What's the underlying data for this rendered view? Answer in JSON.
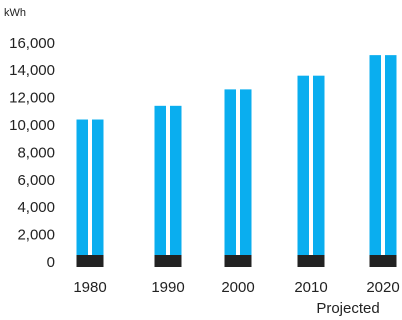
{
  "chart_data": {
    "type": "bar",
    "ylabel": "kWh",
    "categories": [
      "1980",
      "1990",
      "2000",
      "2010",
      "2020"
    ],
    "values": [
      10400,
      11400,
      12600,
      13600,
      15100
    ],
    "yticks": [
      "0",
      "2,000",
      "4,000",
      "6,000",
      "8,000",
      "10,000",
      "12,000",
      "14,000",
      "16,000"
    ],
    "ylim": [
      0,
      16000
    ],
    "annotations": [
      {
        "category": "2020",
        "text": "Projected"
      }
    ],
    "grid": false,
    "colors": {
      "bar": "#0aaeef",
      "base": "#222222"
    }
  }
}
